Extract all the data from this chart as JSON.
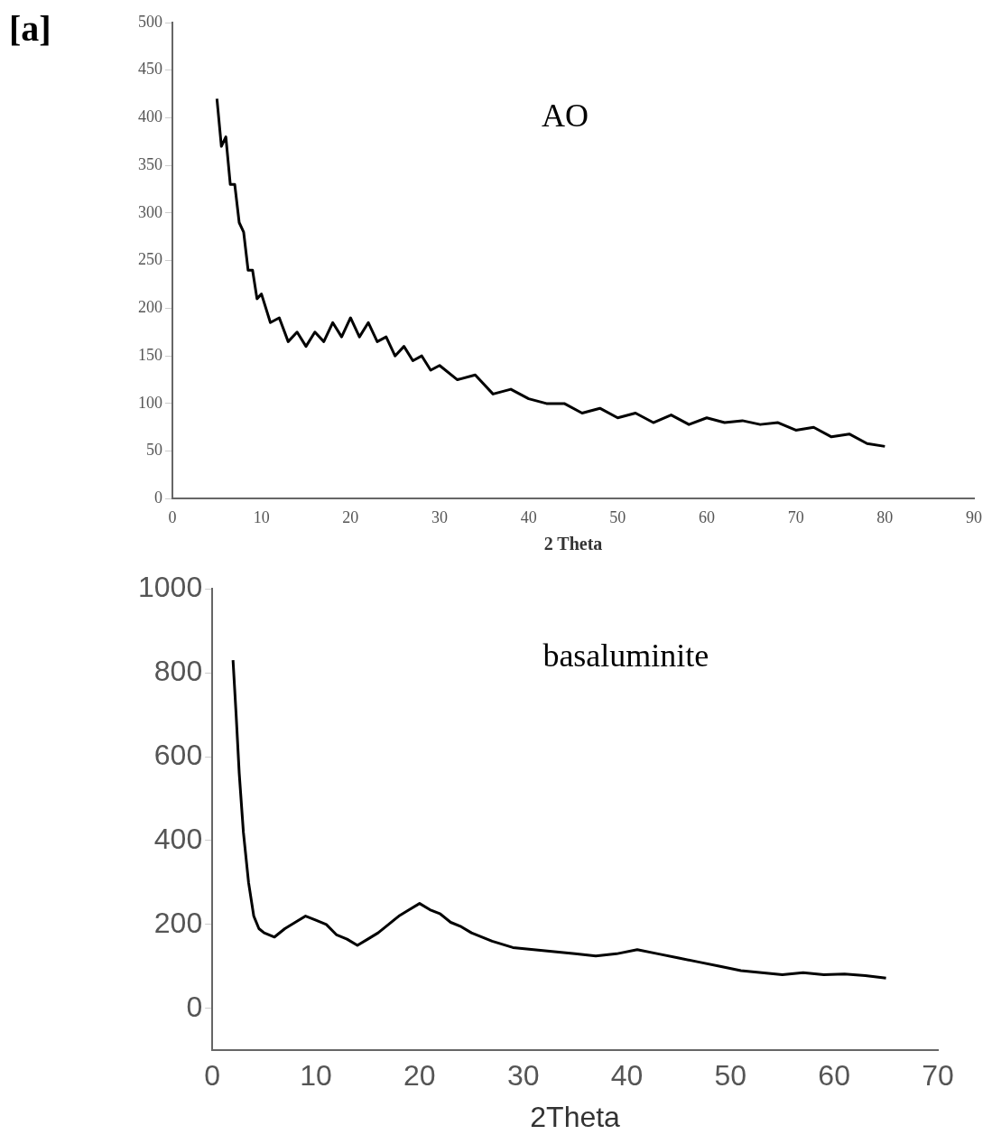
{
  "chart_data": [
    {
      "type": "line",
      "xlabel": "2 Theta",
      "annotations": [
        "[a]",
        "AO"
      ],
      "xlim": [
        0,
        90
      ],
      "xticks": [
        0,
        10,
        20,
        30,
        40,
        50,
        60,
        70,
        80,
        90
      ],
      "ylim": [
        0,
        500
      ],
      "yticks": [
        0,
        50,
        100,
        150,
        200,
        250,
        300,
        350,
        400,
        450,
        500
      ],
      "grid": false,
      "legend": false,
      "marker": "none",
      "line_style": "solid",
      "series": [
        {
          "color": "#000000",
          "x": [
            5,
            5.5,
            6,
            6.5,
            7,
            7.5,
            8,
            8.5,
            9,
            9.5,
            10,
            11,
            12,
            13,
            14,
            15,
            16,
            17,
            18,
            19,
            20,
            21,
            22,
            23,
            24,
            25,
            26,
            27,
            28,
            29,
            30,
            32,
            34,
            36,
            38,
            40,
            42,
            44,
            46,
            48,
            50,
            52,
            54,
            56,
            58,
            60,
            62,
            64,
            66,
            68,
            70,
            72,
            74,
            76,
            78,
            80
          ],
          "values": [
            420,
            370,
            380,
            330,
            330,
            290,
            280,
            240,
            240,
            210,
            215,
            185,
            190,
            165,
            175,
            160,
            175,
            165,
            185,
            170,
            190,
            170,
            185,
            165,
            170,
            150,
            160,
            145,
            150,
            135,
            140,
            125,
            130,
            110,
            115,
            105,
            100,
            100,
            90,
            95,
            85,
            90,
            80,
            88,
            78,
            85,
            80,
            82,
            78,
            80,
            72,
            75,
            65,
            68,
            58,
            55
          ]
        }
      ]
    },
    {
      "type": "line",
      "xlabel": "2Theta",
      "annotations": [
        "basaluminite"
      ],
      "xlim": [
        0,
        70
      ],
      "xticks": [
        0,
        10,
        20,
        30,
        40,
        50,
        60,
        70
      ],
      "ylim": [
        -100,
        1000
      ],
      "yticks": [
        0,
        200,
        400,
        600,
        800,
        1000
      ],
      "grid": false,
      "legend": false,
      "marker": "none",
      "line_style": "solid",
      "series": [
        {
          "color": "#000000",
          "x": [
            2,
            2.3,
            2.6,
            3,
            3.5,
            4,
            4.5,
            5,
            6,
            7,
            8,
            9,
            10,
            11,
            12,
            13,
            14,
            15,
            16,
            17,
            18,
            19,
            20,
            21,
            22,
            23,
            24,
            25,
            27,
            29,
            31,
            33,
            35,
            37,
            39,
            41,
            43,
            45,
            47,
            49,
            51,
            53,
            55,
            57,
            59,
            61,
            63,
            65
          ],
          "values": [
            830,
            700,
            560,
            420,
            300,
            220,
            190,
            180,
            170,
            190,
            205,
            220,
            210,
            200,
            175,
            165,
            150,
            165,
            180,
            200,
            220,
            235,
            250,
            235,
            225,
            205,
            195,
            180,
            160,
            145,
            140,
            135,
            130,
            125,
            130,
            140,
            130,
            120,
            110,
            100,
            90,
            85,
            80,
            85,
            80,
            82,
            78,
            72
          ]
        }
      ]
    }
  ]
}
